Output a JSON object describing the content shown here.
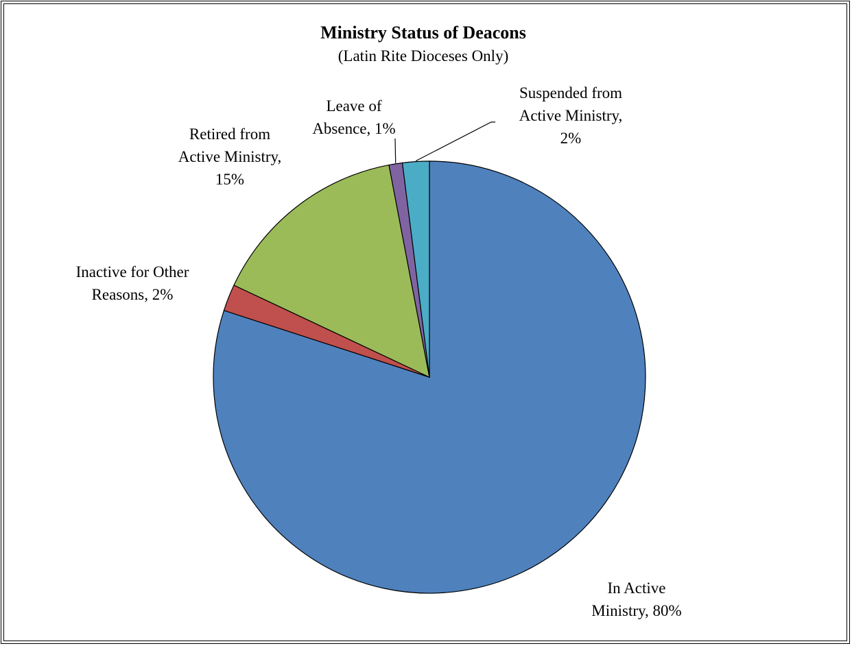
{
  "chart_data": {
    "type": "pie",
    "title": "Ministry Status of Deacons",
    "subtitle": "(Latin Rite Dioceses Only)",
    "slices": [
      {
        "label_lines": [
          "In Active",
          "Ministry, 80%"
        ],
        "value": 80,
        "color": "#4f81bd"
      },
      {
        "label_lines": [
          "Inactive for Other",
          "Reasons, 2%"
        ],
        "value": 2,
        "color": "#c0504d"
      },
      {
        "label_lines": [
          "Retired from",
          "Active Ministry,",
          "15%"
        ],
        "value": 15,
        "color": "#9bbb59"
      },
      {
        "label_lines": [
          "Leave of",
          "Absence, 1%"
        ],
        "value": 1,
        "color": "#8064a2"
      },
      {
        "label_lines": [
          "Suspended from",
          "Active Ministry,",
          "2%"
        ],
        "value": 2,
        "color": "#4bacc6"
      }
    ],
    "legend": "none"
  }
}
